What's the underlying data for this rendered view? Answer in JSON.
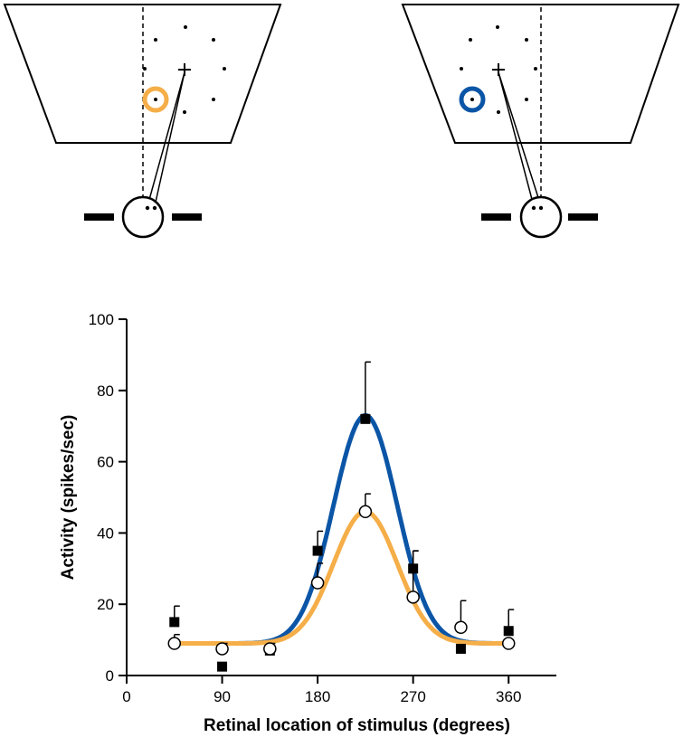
{
  "colors": {
    "blue": "#0b55a6",
    "orange": "#f5ae48",
    "ink": "#000000"
  },
  "illustrations": [
    {
      "condition": "left",
      "target_color": "orange"
    },
    {
      "condition": "right",
      "target_color": "blue"
    }
  ],
  "chart_data": {
    "type": "scatter",
    "title": "",
    "xlabel": "Retinal location of stimulus (degrees)",
    "ylabel": "Activity (spikes/sec)",
    "xlim": [
      0,
      405
    ],
    "ylim": [
      0,
      100
    ],
    "xticks": [
      0,
      90,
      180,
      270,
      360
    ],
    "yticks": [
      0,
      20,
      40,
      60,
      80,
      100
    ],
    "grid": false,
    "series": [
      {
        "marker": "filled-square",
        "line_color": "blue",
        "points": [
          {
            "x": 45,
            "y": 15,
            "err": 4.5
          },
          {
            "x": 90,
            "y": 2.5,
            "err": 0
          },
          {
            "x": 135,
            "y": 7,
            "err": 0
          },
          {
            "x": 180,
            "y": 35,
            "err": 5.5
          },
          {
            "x": 225,
            "y": 72,
            "err": 16
          },
          {
            "x": 270,
            "y": 30,
            "err": 5
          },
          {
            "x": 315,
            "y": 7.5,
            "err": 0
          },
          {
            "x": 360,
            "y": 12.5,
            "err": 6
          }
        ],
        "fit": {
          "baseline": 9,
          "amplitude": 64,
          "center": 225,
          "width": 30
        }
      },
      {
        "marker": "open-circle",
        "line_color": "orange",
        "points": [
          {
            "x": 45,
            "y": 9,
            "err": 2.5
          },
          {
            "x": 90,
            "y": 7.5,
            "err": 1.5
          },
          {
            "x": 135,
            "y": 7.5,
            "err": 1.5
          },
          {
            "x": 180,
            "y": 26,
            "err": 5.5
          },
          {
            "x": 225,
            "y": 46,
            "err": 5
          },
          {
            "x": 270,
            "y": 22,
            "err": 13
          },
          {
            "x": 315,
            "y": 13.5,
            "err": 7.5
          },
          {
            "x": 360,
            "y": 9,
            "err": 0
          }
        ],
        "fit": {
          "baseline": 9,
          "amplitude": 37,
          "center": 225,
          "width": 30
        }
      }
    ]
  }
}
